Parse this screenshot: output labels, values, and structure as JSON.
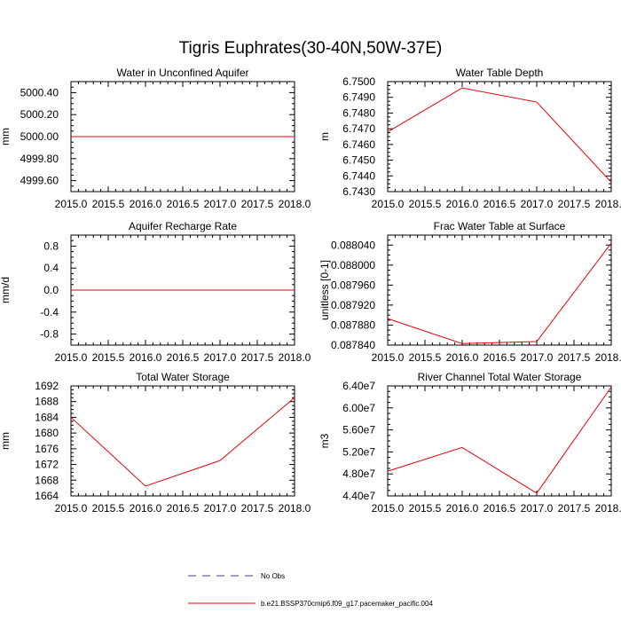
{
  "figure": {
    "title": "Tigris Euphrates(30-40N,50W-37E)"
  },
  "legend": {
    "entries": [
      {
        "label": "No Obs",
        "style": "dashed",
        "color": "#4a3a8a"
      },
      {
        "label": "b.e21.BSSP370cmip6.f09_g17.pacemaker_pacific.004",
        "style": "solid",
        "color": "#e8000b"
      }
    ]
  },
  "chart_data": [
    {
      "type": "line",
      "title": "Water in Unconfined Aquifer",
      "ylabel": "mm",
      "xlabel": "",
      "xlim": [
        2015.0,
        2018.0
      ],
      "xticks": [
        "2015.0",
        "2015.5",
        "2016.0",
        "2016.5",
        "2017.0",
        "2017.5",
        "2018.0"
      ],
      "ylim": [
        4999.5,
        5000.5
      ],
      "yticks": [
        "4999.60",
        "4999.80",
        "5000.00",
        "5000.20",
        "5000.40"
      ],
      "series": [
        {
          "name": "b.e21.BSSP370cmip6.f09_g17.pacemaker_pacific.004",
          "color": "#e8000b",
          "x": [
            2015,
            2016,
            2017,
            2018
          ],
          "y": [
            5000.0,
            5000.0,
            5000.0,
            5000.0
          ]
        }
      ]
    },
    {
      "type": "line",
      "title": "Water Table Depth",
      "ylabel": "m",
      "xlabel": "",
      "xlim": [
        2015.0,
        2018.0
      ],
      "xticks": [
        "2015.0",
        "2015.5",
        "2016.0",
        "2016.5",
        "2017.0",
        "2017.5",
        "2018.0"
      ],
      "ylim": [
        6.743,
        6.75
      ],
      "yticks": [
        "6.7430",
        "6.7440",
        "6.7450",
        "6.7460",
        "6.7470",
        "6.7480",
        "6.7490",
        "6.7500"
      ],
      "series": [
        {
          "name": "b.e21.BSSP370cmip6.f09_g17.pacemaker_pacific.004",
          "color": "#e8000b",
          "x": [
            2015,
            2016,
            2017,
            2018
          ],
          "y": [
            6.7468,
            6.7496,
            6.7487,
            6.7436
          ]
        }
      ]
    },
    {
      "type": "line",
      "title": "Aquifer Recharge Rate",
      "ylabel": "mm/d",
      "xlabel": "",
      "xlim": [
        2015.0,
        2018.0
      ],
      "xticks": [
        "2015.0",
        "2015.5",
        "2016.0",
        "2016.5",
        "2017.0",
        "2017.5",
        "2018.0"
      ],
      "ylim": [
        -1.0,
        1.0
      ],
      "yticks": [
        "-0.8",
        "-0.4",
        "0.0",
        "0.4",
        "0.8"
      ],
      "series": [
        {
          "name": "b.e21.BSSP370cmip6.f09_g17.pacemaker_pacific.004",
          "color": "#e8000b",
          "x": [
            2015,
            2016,
            2017,
            2018
          ],
          "y": [
            0.0,
            0.0,
            0.0,
            0.0
          ]
        }
      ]
    },
    {
      "type": "line",
      "title": "Frac Water Table at Surface",
      "ylabel": "unitless [0-1]",
      "xlabel": "",
      "xlim": [
        2015.0,
        2018.0
      ],
      "xticks": [
        "2015.0",
        "2015.5",
        "2016.0",
        "2016.5",
        "2017.0",
        "2017.5",
        "2018.0"
      ],
      "ylim": [
        0.08784,
        0.08806
      ],
      "yticks": [
        "0.087840",
        "0.087880",
        "0.087920",
        "0.087960",
        "0.088000",
        "0.088040"
      ],
      "series": [
        {
          "name": "b.e21.BSSP370cmip6.f09_g17.pacemaker_pacific.004",
          "color": "#e8000b",
          "x": [
            2015,
            2016,
            2017,
            2018
          ],
          "y": [
            0.087893,
            0.087843,
            0.087847,
            0.088044
          ]
        }
      ]
    },
    {
      "type": "line",
      "title": "Total Water Storage",
      "ylabel": "mm",
      "xlabel": "",
      "xlim": [
        2015.0,
        2018.0
      ],
      "xticks": [
        "2015.0",
        "2015.5",
        "2016.0",
        "2016.5",
        "2017.0",
        "2017.5",
        "2018.0"
      ],
      "ylim": [
        1664,
        1692
      ],
      "yticks": [
        "1664",
        "1668",
        "1672",
        "1676",
        "1680",
        "1684",
        "1688",
        "1692"
      ],
      "series": [
        {
          "name": "b.e21.BSSP370cmip6.f09_g17.pacemaker_pacific.004",
          "color": "#e8000b",
          "x": [
            2015,
            2016,
            2017,
            2018
          ],
          "y": [
            1684.0,
            1666.5,
            1673.0,
            1689.0
          ]
        }
      ]
    },
    {
      "type": "line",
      "title": "River Channel Total Water Storage",
      "ylabel": "m3",
      "xlabel": "",
      "xlim": [
        2015.0,
        2018.0
      ],
      "xticks": [
        "2015.0",
        "2015.5",
        "2016.0",
        "2016.5",
        "2017.0",
        "2017.5",
        "2018.0"
      ],
      "ylim": [
        44000000,
        64000000
      ],
      "yticks": [
        "4.40e7",
        "4.80e7",
        "5.20e7",
        "5.60e7",
        "6.00e7",
        "6.40e7"
      ],
      "series": [
        {
          "name": "b.e21.BSSP370cmip6.f09_g17.pacemaker_pacific.004",
          "color": "#e8000b",
          "x": [
            2015,
            2016,
            2017,
            2018
          ],
          "y": [
            48500000,
            52800000,
            44500000,
            63800000
          ]
        }
      ]
    }
  ]
}
